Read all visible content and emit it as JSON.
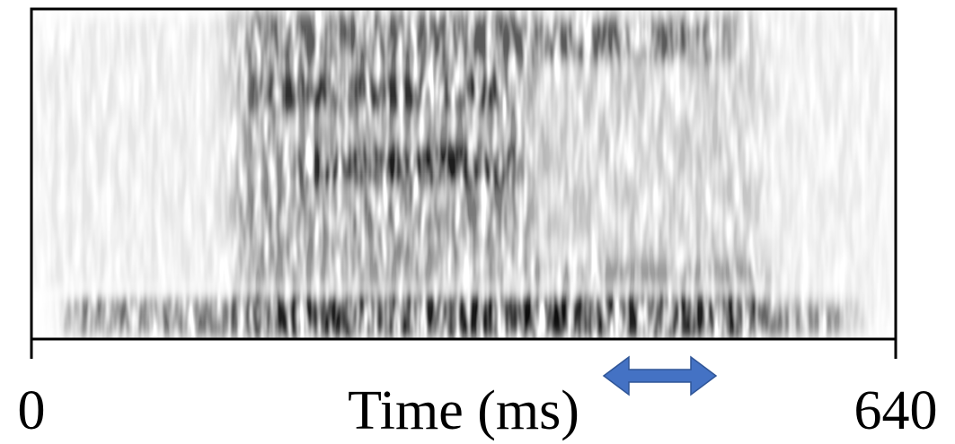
{
  "chart_data": {
    "type": "spectrogram",
    "xlabel": "Time (ms)",
    "xlim": [
      0,
      640
    ],
    "xticks": [
      0,
      640
    ]
  }
}
